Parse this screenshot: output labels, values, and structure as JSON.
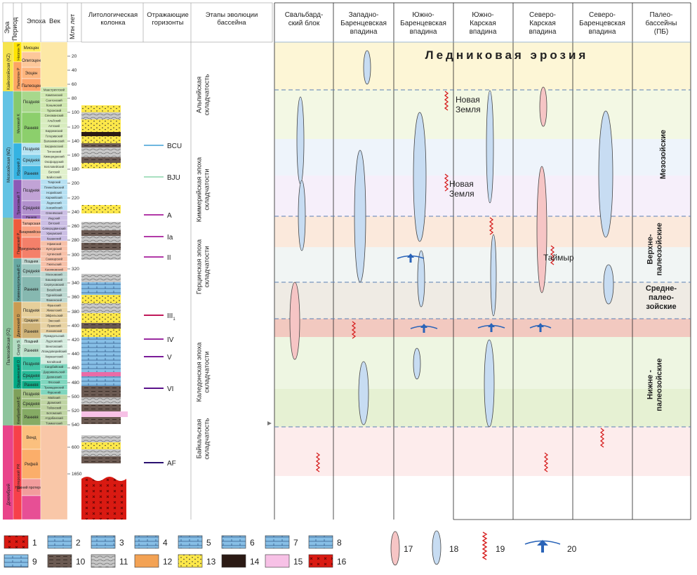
{
  "left_header": {
    "era": "Эра",
    "period": "Период",
    "epoch": "Эпоха",
    "age": "Век",
    "ma": "Млн лет",
    "litho": "Литологическая колонка",
    "horizons": "Отражающие горизонты",
    "stages": "Этапы эволюции бассейна"
  },
  "right_header": [
    "Свальбард-\nский блок",
    "Западно-\nБаренцевская\nвпадина",
    "Южно-\nБаренцевская\nвпадина",
    "Южно-\nКарская\nвпадина",
    "Северо-\nКарская\nвпадина",
    "Северо-\nБаренцевская\nвпадина",
    "Палео-\nбассейны\n(ПБ)"
  ],
  "eras": [
    "Кайнозойская (KZ)",
    "Мезозойская (MZ)",
    "Палеозойская (PZ)",
    "Докембрий"
  ],
  "periods": [
    "Неоген N",
    "Палеоген P",
    "Меловой K",
    "Юрский J",
    "Триасовый T",
    "Пермский P",
    "Каменноугольный C",
    "Девонский D",
    "Силур S",
    "Ордовикский O",
    "Кембрийский Є",
    "Протерозой PR"
  ],
  "epochs": [
    "Миоцен",
    "Олигоцен",
    "Эоцен",
    "Палеоцен",
    "Поздняя",
    "Ранняя",
    "Поздняя",
    "Средняя",
    "Ранняя",
    "Поздняя",
    "Средняя",
    "Ранняя",
    "Татарская",
    "Биармийская",
    "Приуральская",
    "Поздняя",
    "Средняя",
    "Ранняя",
    "Поздняя",
    "Средняя",
    "Ранняя",
    "Поздний",
    "Ранняя",
    "Поздняя",
    "Средняя",
    "Ранняя",
    "Поздняя",
    "Средняя",
    "Ранняя",
    "Венд",
    "Рифей",
    "Нижний протерозой"
  ],
  "ages": [
    "Маастрихтский",
    "Кампанский",
    "Сантонский",
    "Коньякский",
    "Туронский",
    "Сеноманский",
    "Альбский",
    "Аптский",
    "Барремский",
    "Готеривский",
    "Валанжинский",
    "Берриасский",
    "Титонский",
    "Кимериджский",
    "Оксфордский",
    "Келловейский",
    "Батский",
    "Байосский",
    "Тоарский",
    "Плинсбахский",
    "Норийский",
    "Карнийский",
    "Ладинский",
    "Анизийский",
    "Оленёкский",
    "Индский",
    "Вятский",
    "Северодвинский",
    "Уржумский",
    "Казанский",
    "Уфимский",
    "Кунгурский",
    "Артинский",
    "Сакмарский",
    "Гжельский",
    "Касимовский",
    "Московский",
    "Башкирский",
    "Серпуховский",
    "Визейский",
    "Турнейский",
    "Фаменский",
    "Франский",
    "Живетский",
    "Эйфельский",
    "Эмсский",
    "Пражский",
    "Лохковский",
    "Пржидольский",
    "Лудловский",
    "Венлокский",
    "Лландоверийский",
    "Хирнантский",
    "Катийский",
    "Сандбийский",
    "Дарривильский",
    "Дапинский",
    "Флоский",
    "Тремадокский",
    "Фуронгий",
    "Майский",
    "Драмский",
    "Тойонский",
    "Ботомский",
    "Атдабанский",
    "Томмотский"
  ],
  "ma_ticks": [
    "20",
    "40",
    "60",
    "80",
    "100",
    "120",
    "140",
    "160",
    "180",
    "200",
    "220",
    "240",
    "260",
    "280",
    "300",
    "320",
    "340",
    "360",
    "380",
    "400",
    "420",
    "440",
    "460",
    "480",
    "500",
    "520",
    "540",
    "600",
    "1650"
  ],
  "horizons": [
    {
      "label": "BCU",
      "color": "#6fb7e0"
    },
    {
      "label": "BJU",
      "color": "#a8e0c0"
    },
    {
      "label": "A",
      "color": "#b23aa8"
    },
    {
      "label": "Ia",
      "color": "#b23aa8"
    },
    {
      "label": "II",
      "color": "#b23aa8"
    },
    {
      "label": "III",
      "sub": "1",
      "color": "#c0185a"
    },
    {
      "label": "IV",
      "color": "#9a2aa0"
    },
    {
      "label": "V",
      "color": "#7a1c98"
    },
    {
      "label": "VI",
      "color": "#5a128a"
    },
    {
      "label": "AF",
      "color": "#2a1070"
    }
  ],
  "stages": [
    "Альпийская\nскладчатость",
    "Киммерийская эпоха\nскладчатости",
    "Герцинская эпоха\nскладчатости",
    "Каледонская эпоха\nскладчатости",
    "Байкальская\nскладчатость"
  ],
  "glacial_erosion": "Ледниковая эрозия",
  "annotations": [
    "Новая\nЗемля",
    "Новая\nЗемля",
    "Таймыр"
  ],
  "paleobasins": [
    "Мезозойские",
    "Верхне-\nпалеозойские",
    "Средне-\nпалео-\nзойские",
    "Нижне -\nпалеозойские"
  ],
  "legend_numbers": [
    "1",
    "2",
    "3",
    "4",
    "5",
    "6",
    "7",
    "8",
    "9",
    "10",
    "11",
    "12",
    "13",
    "14",
    "15",
    "16"
  ],
  "legend_symbols": [
    "17",
    "18",
    "19",
    "20"
  ],
  "colors": {
    "glacial": "#fdf6d6",
    "mesozoic_a": "#f3f8e4",
    "mesozoic_b": "#eef4fb",
    "mesozoic_c": "#f6effa",
    "upper_pz": "#fbe9dc",
    "upper_pz_b": "#f1f5f4",
    "middle_pz": "#efebe4",
    "red_band": "#f2c9c0",
    "lower_pz": "#eef6e2",
    "precambrian": "#fdecec",
    "pink_lens": "#f6c5c5",
    "blue_lens": "#c7dcf2",
    "squiggle": "#d62020",
    "arrow": "#2a64b8"
  }
}
